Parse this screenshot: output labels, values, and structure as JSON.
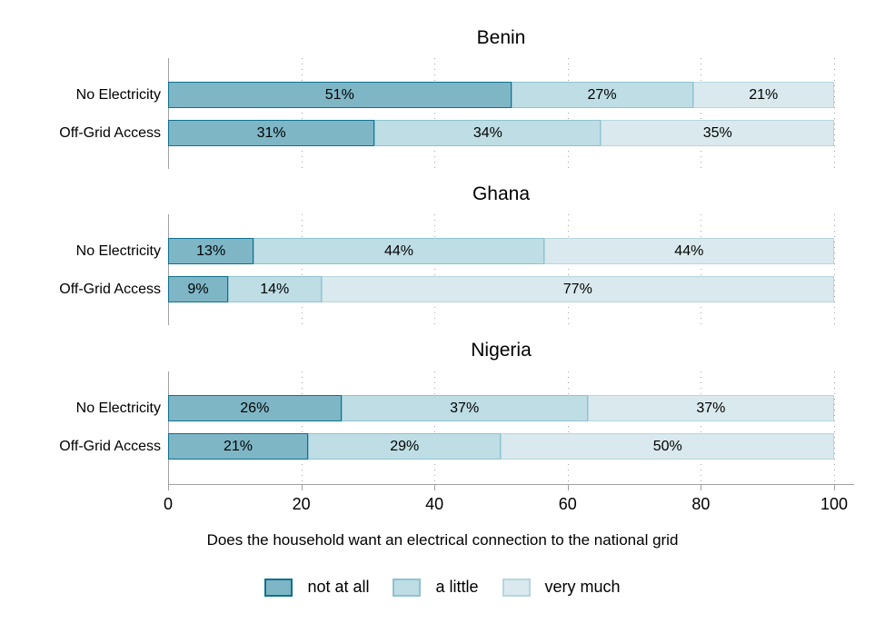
{
  "chart_data": {
    "type": "bar",
    "orientation": "horizontal-stacked",
    "value_suffix": "%",
    "xlabel": "Does the household want an electrical connection to the national grid",
    "xlim": [
      0,
      100
    ],
    "x_ticks": [
      0,
      20,
      40,
      60,
      80,
      100
    ],
    "grid": "dotted-vertical",
    "legend_position": "bottom-center",
    "series": [
      {
        "name": "not at all",
        "fill": "#7eb6c6",
        "border": "#0e7190"
      },
      {
        "name": "a little",
        "fill": "#bedde5",
        "border": "#8ec3cf"
      },
      {
        "name": "very much",
        "fill": "#d9e9ee",
        "border": "#b5d6df"
      }
    ],
    "panels": [
      {
        "title": "Benin",
        "rows": [
          {
            "label": "No Electricity",
            "values": [
              51,
              27,
              21
            ]
          },
          {
            "label": "Off-Grid Access",
            "values": [
              31,
              34,
              35
            ]
          }
        ]
      },
      {
        "title": "Ghana",
        "rows": [
          {
            "label": "No Electricity",
            "values": [
              13,
              44,
              44
            ]
          },
          {
            "label": "Off-Grid Access",
            "values": [
              9,
              14,
              77
            ]
          }
        ]
      },
      {
        "title": "Nigeria",
        "rows": [
          {
            "label": "No Electricity",
            "values": [
              26,
              37,
              37
            ]
          },
          {
            "label": "Off-Grid Access",
            "values": [
              21,
              29,
              50
            ]
          }
        ]
      }
    ],
    "colors": {
      "axis": "#a0a0a0",
      "gridline": "#a4a4a4",
      "text": "#000000",
      "background": "#ffffff"
    }
  }
}
